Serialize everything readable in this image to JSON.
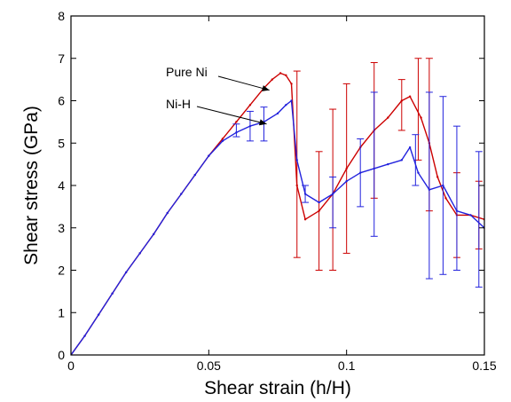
{
  "chart_data": {
    "type": "line",
    "xlabel": "Shear strain (h/H)",
    "ylabel": "Shear stress (GPa)",
    "xlim": [
      0,
      0.15
    ],
    "ylim": [
      0,
      8
    ],
    "xticks": [
      0,
      0.05,
      0.1,
      0.15
    ],
    "xtick_labels": [
      "0",
      "0.05",
      "0.1",
      "0.15"
    ],
    "yticks": [
      0,
      1,
      2,
      3,
      4,
      5,
      6,
      7,
      8
    ],
    "ytick_labels": [
      "0",
      "1",
      "2",
      "3",
      "4",
      "5",
      "6",
      "7",
      "8"
    ],
    "grid": false,
    "legend": "none",
    "series": [
      {
        "name": "Pure Ni",
        "color": "#cc0000",
        "x": [
          0,
          0.005,
          0.01,
          0.015,
          0.02,
          0.025,
          0.03,
          0.035,
          0.04,
          0.045,
          0.05,
          0.055,
          0.06,
          0.065,
          0.07,
          0.073,
          0.076,
          0.078,
          0.08,
          0.082,
          0.085,
          0.09,
          0.095,
          0.1,
          0.105,
          0.11,
          0.115,
          0.12,
          0.123,
          0.127,
          0.13,
          0.133,
          0.136,
          0.14,
          0.145,
          0.15
        ],
        "y": [
          0,
          0.45,
          0.95,
          1.45,
          1.95,
          2.4,
          2.85,
          3.35,
          3.8,
          4.25,
          4.7,
          5.1,
          5.5,
          5.9,
          6.3,
          6.5,
          6.65,
          6.6,
          6.4,
          4.0,
          3.2,
          3.4,
          3.8,
          4.4,
          4.9,
          5.3,
          5.6,
          6.0,
          6.1,
          5.6,
          5.0,
          4.2,
          3.7,
          3.3,
          3.3,
          3.2
        ],
        "error_bars": [
          {
            "x": 0.082,
            "y": 4.5,
            "err": 2.2
          },
          {
            "x": 0.09,
            "y": 3.4,
            "err": 1.4
          },
          {
            "x": 0.095,
            "y": 3.9,
            "err": 1.9
          },
          {
            "x": 0.1,
            "y": 4.4,
            "err": 2.0
          },
          {
            "x": 0.11,
            "y": 5.3,
            "err": 1.6
          },
          {
            "x": 0.12,
            "y": 5.9,
            "err": 0.6
          },
          {
            "x": 0.126,
            "y": 5.8,
            "err": 1.2
          },
          {
            "x": 0.13,
            "y": 5.2,
            "err": 1.8
          },
          {
            "x": 0.14,
            "y": 3.3,
            "err": 1.0
          },
          {
            "x": 0.148,
            "y": 3.3,
            "err": 0.8
          }
        ]
      },
      {
        "name": "Ni-H",
        "color": "#2222dd",
        "x": [
          0,
          0.005,
          0.01,
          0.015,
          0.02,
          0.025,
          0.03,
          0.035,
          0.04,
          0.045,
          0.05,
          0.055,
          0.06,
          0.065,
          0.07,
          0.075,
          0.078,
          0.08,
          0.082,
          0.085,
          0.09,
          0.095,
          0.1,
          0.105,
          0.11,
          0.115,
          0.12,
          0.123,
          0.126,
          0.13,
          0.135,
          0.14,
          0.145,
          0.15
        ],
        "y": [
          0,
          0.45,
          0.95,
          1.45,
          1.95,
          2.4,
          2.85,
          3.35,
          3.8,
          4.25,
          4.7,
          5.05,
          5.25,
          5.4,
          5.5,
          5.7,
          5.9,
          6.0,
          4.6,
          3.8,
          3.6,
          3.8,
          4.1,
          4.3,
          4.4,
          4.5,
          4.6,
          4.9,
          4.3,
          3.9,
          4.0,
          3.4,
          3.3,
          3.0
        ],
        "error_bars": [
          {
            "x": 0.06,
            "y": 5.3,
            "err": 0.15
          },
          {
            "x": 0.065,
            "y": 5.4,
            "err": 0.35
          },
          {
            "x": 0.07,
            "y": 5.45,
            "err": 0.4
          },
          {
            "x": 0.085,
            "y": 3.8,
            "err": 0.2
          },
          {
            "x": 0.095,
            "y": 3.6,
            "err": 0.6
          },
          {
            "x": 0.105,
            "y": 4.3,
            "err": 0.8
          },
          {
            "x": 0.11,
            "y": 4.5,
            "err": 1.7
          },
          {
            "x": 0.125,
            "y": 4.6,
            "err": 0.6
          },
          {
            "x": 0.13,
            "y": 4.0,
            "err": 2.2
          },
          {
            "x": 0.135,
            "y": 4.0,
            "err": 2.1
          },
          {
            "x": 0.14,
            "y": 3.7,
            "err": 1.7
          },
          {
            "x": 0.148,
            "y": 3.2,
            "err": 1.6
          }
        ]
      }
    ],
    "annotations": [
      {
        "text": "Pure Ni",
        "points_to": {
          "x": 0.072,
          "y": 6.25
        }
      },
      {
        "text": "Ni-H",
        "points_to": {
          "x": 0.071,
          "y": 5.45
        }
      }
    ]
  }
}
